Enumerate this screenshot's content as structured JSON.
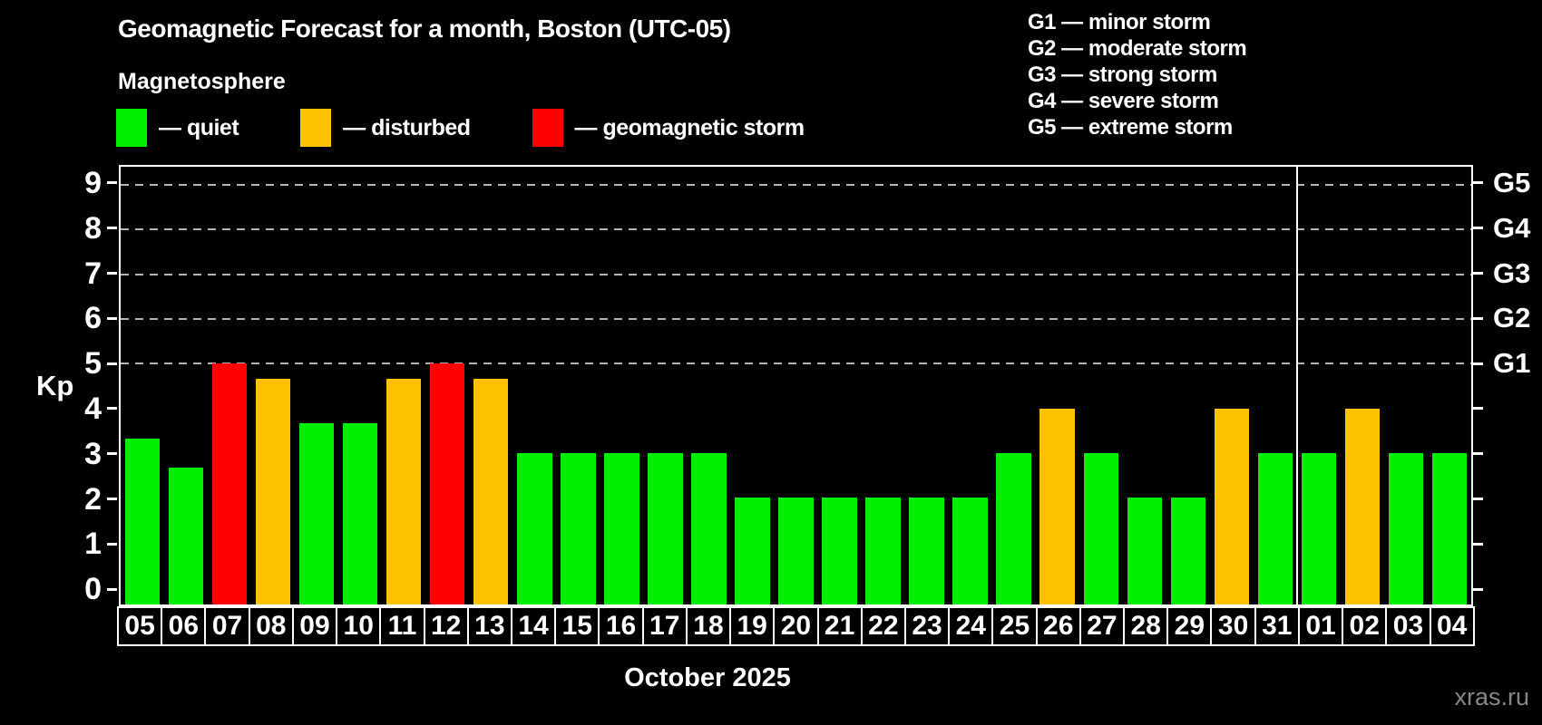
{
  "header": {
    "title": "Geomagnetic Forecast for a month, Boston (UTC-05)",
    "subtitle": "Magnetosphere",
    "legend": [
      {
        "key": "quiet",
        "label": "— quiet",
        "color": "#00ee00"
      },
      {
        "key": "disturbed",
        "label": "— disturbed",
        "color": "#ffc200"
      },
      {
        "key": "storm",
        "label": "— geomagnetic storm",
        "color": "#ff0000"
      }
    ],
    "g_legend": [
      "G1 — minor storm",
      "G2 — moderate storm",
      "G3 — strong storm",
      "G4 — severe storm",
      "G5 — extreme storm"
    ]
  },
  "chart_data": {
    "type": "bar",
    "title": "Geomagnetic Forecast for a month, Boston (UTC-05)",
    "xlabel": "October 2025",
    "ylabel": "Kp",
    "ylim": [
      -0.38,
      9.4
    ],
    "yticks": [
      0,
      1,
      2,
      3,
      4,
      5,
      6,
      7,
      8,
      9
    ],
    "gridlines_at": [
      5,
      6,
      7,
      8,
      9
    ],
    "grid_style": "dashed horizontal lines at Kp 5-9 only",
    "right_axis_labels": {
      "5": "G1",
      "6": "G2",
      "7": "G3",
      "8": "G4",
      "9": "G5"
    },
    "categories": [
      "05",
      "06",
      "07",
      "08",
      "09",
      "10",
      "11",
      "12",
      "13",
      "14",
      "15",
      "16",
      "17",
      "18",
      "19",
      "20",
      "21",
      "22",
      "23",
      "24",
      "25",
      "26",
      "27",
      "28",
      "29",
      "30",
      "31",
      "01",
      "02",
      "03",
      "04"
    ],
    "values": [
      3.33,
      2.67,
      5.0,
      4.67,
      3.67,
      3.67,
      4.67,
      5.0,
      4.67,
      3.0,
      3.0,
      3.0,
      3.0,
      3.0,
      2.0,
      2.0,
      2.0,
      2.0,
      2.0,
      2.0,
      3.0,
      4.0,
      3.0,
      2.0,
      2.0,
      4.0,
      3.0,
      3.0,
      4.0,
      3.0,
      3.0
    ],
    "statuses": [
      "quiet",
      "quiet",
      "storm",
      "disturbed",
      "quiet",
      "quiet",
      "disturbed",
      "storm",
      "disturbed",
      "quiet",
      "quiet",
      "quiet",
      "quiet",
      "quiet",
      "quiet",
      "quiet",
      "quiet",
      "quiet",
      "quiet",
      "quiet",
      "quiet",
      "disturbed",
      "quiet",
      "quiet",
      "quiet",
      "disturbed",
      "quiet",
      "quiet",
      "disturbed",
      "quiet",
      "quiet"
    ],
    "status_colors": {
      "quiet": "#00ee00",
      "disturbed": "#ffc200",
      "storm": "#ff0000"
    },
    "month_separator_index": 27,
    "legend_position": "top-left"
  },
  "footer": {
    "month_label": "October 2025",
    "watermark": "xras.ru"
  }
}
